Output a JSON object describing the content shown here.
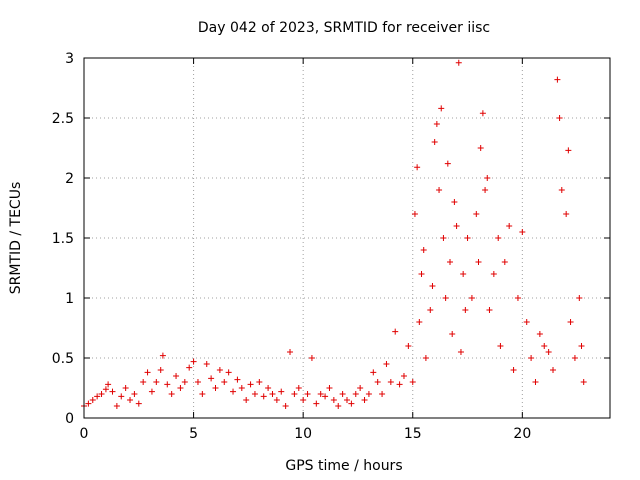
{
  "chart_data": {
    "type": "scatter",
    "title": "Day 042 of 2023, SRMTID for receiver iisc",
    "xlabel": "GPS time / hours",
    "ylabel": "SRMTID / TECUs",
    "xlim": [
      0,
      24
    ],
    "ylim": [
      0,
      3
    ],
    "xticks": [
      0,
      5,
      10,
      15,
      20
    ],
    "xtick_labels": [
      "0",
      "5",
      "10",
      "15",
      "20"
    ],
    "yticks": [
      0,
      0.5,
      1,
      1.5,
      2,
      2.5,
      3
    ],
    "ytick_labels": [
      "0",
      "0.5",
      "1",
      "1.5",
      "2",
      "2.5",
      "3"
    ],
    "grid": true,
    "marker": "+",
    "color": "#e00000",
    "series": [
      {
        "name": "SRMTID",
        "points": [
          [
            0.0,
            0.1
          ],
          [
            0.2,
            0.12
          ],
          [
            0.4,
            0.15
          ],
          [
            0.6,
            0.18
          ],
          [
            0.8,
            0.2
          ],
          [
            1.0,
            0.24
          ],
          [
            1.1,
            0.28
          ],
          [
            1.3,
            0.22
          ],
          [
            1.5,
            0.1
          ],
          [
            1.7,
            0.18
          ],
          [
            1.9,
            0.25
          ],
          [
            2.1,
            0.15
          ],
          [
            2.3,
            0.2
          ],
          [
            2.5,
            0.12
          ],
          [
            2.7,
            0.3
          ],
          [
            2.9,
            0.38
          ],
          [
            3.1,
            0.22
          ],
          [
            3.3,
            0.3
          ],
          [
            3.5,
            0.4
          ],
          [
            3.6,
            0.52
          ],
          [
            3.8,
            0.28
          ],
          [
            4.0,
            0.2
          ],
          [
            4.2,
            0.35
          ],
          [
            4.4,
            0.25
          ],
          [
            4.6,
            0.3
          ],
          [
            4.8,
            0.42
          ],
          [
            5.0,
            0.47
          ],
          [
            5.2,
            0.3
          ],
          [
            5.4,
            0.2
          ],
          [
            5.6,
            0.45
          ],
          [
            5.8,
            0.33
          ],
          [
            6.0,
            0.25
          ],
          [
            6.2,
            0.4
          ],
          [
            6.4,
            0.3
          ],
          [
            6.6,
            0.38
          ],
          [
            6.8,
            0.22
          ],
          [
            7.0,
            0.32
          ],
          [
            7.2,
            0.25
          ],
          [
            7.4,
            0.15
          ],
          [
            7.6,
            0.28
          ],
          [
            7.8,
            0.2
          ],
          [
            8.0,
            0.3
          ],
          [
            8.2,
            0.18
          ],
          [
            8.4,
            0.25
          ],
          [
            8.6,
            0.2
          ],
          [
            8.8,
            0.15
          ],
          [
            9.0,
            0.22
          ],
          [
            9.2,
            0.1
          ],
          [
            9.4,
            0.55
          ],
          [
            9.6,
            0.2
          ],
          [
            9.8,
            0.25
          ],
          [
            10.0,
            0.15
          ],
          [
            10.2,
            0.2
          ],
          [
            10.4,
            0.5
          ],
          [
            10.6,
            0.12
          ],
          [
            10.8,
            0.2
          ],
          [
            11.0,
            0.18
          ],
          [
            11.2,
            0.25
          ],
          [
            11.4,
            0.15
          ],
          [
            11.6,
            0.1
          ],
          [
            11.8,
            0.2
          ],
          [
            12.0,
            0.15
          ],
          [
            12.2,
            0.12
          ],
          [
            12.4,
            0.2
          ],
          [
            12.6,
            0.25
          ],
          [
            12.8,
            0.15
          ],
          [
            13.0,
            0.2
          ],
          [
            13.2,
            0.38
          ],
          [
            13.4,
            0.3
          ],
          [
            13.6,
            0.2
          ],
          [
            13.8,
            0.45
          ],
          [
            14.0,
            0.3
          ],
          [
            14.2,
            0.72
          ],
          [
            14.4,
            0.28
          ],
          [
            14.6,
            0.35
          ],
          [
            14.8,
            0.6
          ],
          [
            15.0,
            0.3
          ],
          [
            15.1,
            1.7
          ],
          [
            15.2,
            2.09
          ],
          [
            15.3,
            0.8
          ],
          [
            15.4,
            1.2
          ],
          [
            15.5,
            1.4
          ],
          [
            15.6,
            0.5
          ],
          [
            15.8,
            0.9
          ],
          [
            15.9,
            1.1
          ],
          [
            16.0,
            2.3
          ],
          [
            16.1,
            2.45
          ],
          [
            16.2,
            1.9
          ],
          [
            16.3,
            2.58
          ],
          [
            16.4,
            1.5
          ],
          [
            16.5,
            1.0
          ],
          [
            16.6,
            2.12
          ],
          [
            16.7,
            1.3
          ],
          [
            16.8,
            0.7
          ],
          [
            16.9,
            1.8
          ],
          [
            17.0,
            1.6
          ],
          [
            17.1,
            2.96
          ],
          [
            17.2,
            0.55
          ],
          [
            17.3,
            1.2
          ],
          [
            17.4,
            0.9
          ],
          [
            17.5,
            1.5
          ],
          [
            17.7,
            1.0
          ],
          [
            17.9,
            1.7
          ],
          [
            18.0,
            1.3
          ],
          [
            18.1,
            2.25
          ],
          [
            18.2,
            2.54
          ],
          [
            18.3,
            1.9
          ],
          [
            18.4,
            2.0
          ],
          [
            18.5,
            0.9
          ],
          [
            18.7,
            1.2
          ],
          [
            18.9,
            1.5
          ],
          [
            19.0,
            0.6
          ],
          [
            19.2,
            1.3
          ],
          [
            19.4,
            1.6
          ],
          [
            19.6,
            0.4
          ],
          [
            19.8,
            1.0
          ],
          [
            20.0,
            1.55
          ],
          [
            20.2,
            0.8
          ],
          [
            20.4,
            0.5
          ],
          [
            20.6,
            0.3
          ],
          [
            20.8,
            0.7
          ],
          [
            21.0,
            0.6
          ],
          [
            21.2,
            0.55
          ],
          [
            21.4,
            0.4
          ],
          [
            21.6,
            2.82
          ],
          [
            21.7,
            2.5
          ],
          [
            21.8,
            1.9
          ],
          [
            22.0,
            1.7
          ],
          [
            22.1,
            2.23
          ],
          [
            22.2,
            0.8
          ],
          [
            22.4,
            0.5
          ],
          [
            22.6,
            1.0
          ],
          [
            22.7,
            0.6
          ],
          [
            22.8,
            0.3
          ]
        ]
      }
    ]
  }
}
